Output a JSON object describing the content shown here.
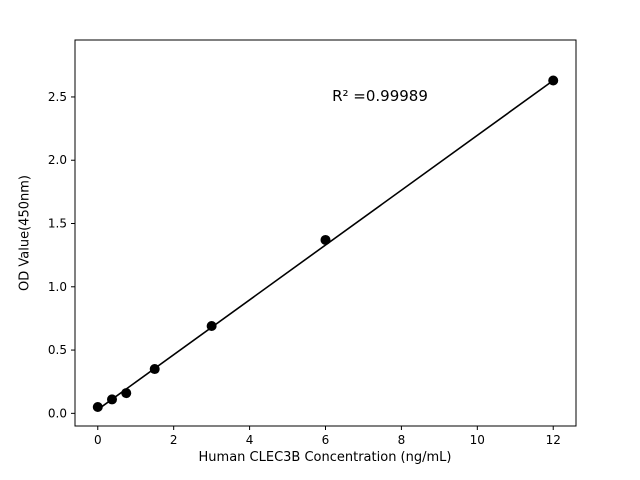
{
  "figure": {
    "background": "#ffffff"
  },
  "chart_data": {
    "type": "scatter",
    "title": "",
    "xlabel": "Human CLEC3B Concentration (ng/mL)",
    "ylabel": "OD Value(450nm)",
    "x": [
      0,
      0.375,
      0.75,
      1.5,
      3,
      6,
      12
    ],
    "y": [
      0.05,
      0.11,
      0.16,
      0.35,
      0.69,
      1.37,
      2.63
    ],
    "fit_line": {
      "x0": 0,
      "y0": 0.03,
      "x1": 12,
      "y1": 2.63
    },
    "xlim": [
      -0.6,
      12.6
    ],
    "ylim": [
      -0.1,
      2.95
    ],
    "xticks": [
      0,
      2,
      4,
      6,
      8,
      10,
      12
    ],
    "xtick_labels": [
      "0",
      "2",
      "4",
      "6",
      "8",
      "10",
      "12"
    ],
    "yticks": [
      0.0,
      0.5,
      1.0,
      1.5,
      2.0,
      2.5
    ],
    "ytick_labels": [
      "0.0",
      "0.5",
      "1.0",
      "1.5",
      "2.0",
      "2.5"
    ],
    "annotation": {
      "text": "R² =0.99989"
    },
    "marker_color": "#000000",
    "line_color": "#000000",
    "marker_radius": 5,
    "grid": false,
    "legend": "none"
  }
}
